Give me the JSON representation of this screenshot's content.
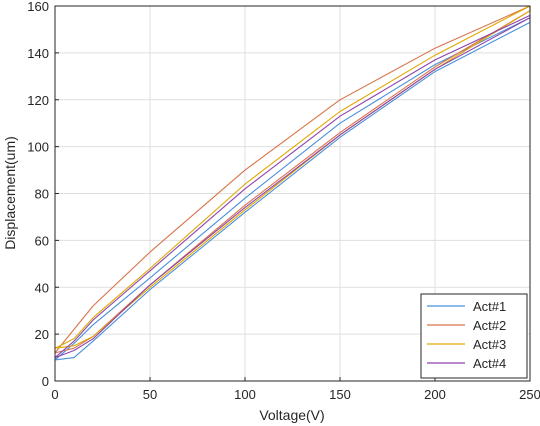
{
  "chart_data": {
    "type": "line",
    "title": "",
    "xlabel": "Voltage(V)",
    "ylabel": "Displacement(um)",
    "xlim": [
      0,
      250
    ],
    "ylim": [
      0,
      160
    ],
    "xticks": [
      0,
      50,
      100,
      150,
      200,
      250
    ],
    "yticks": [
      0,
      20,
      40,
      60,
      80,
      100,
      120,
      140,
      160
    ],
    "grid": true,
    "legend_position": "bottom-right",
    "series": [
      {
        "name": "Act#1",
        "color": "#4a90d9",
        "ascending": {
          "x": [
            0,
            10,
            20,
            50,
            100,
            150,
            200,
            250
          ],
          "y": [
            9,
            10,
            17,
            39,
            72,
            104,
            132,
            153
          ]
        },
        "descending": {
          "x": [
            250,
            200,
            150,
            100,
            50,
            20,
            10,
            0
          ],
          "y": [
            155,
            135,
            110,
            78,
            44,
            24,
            16,
            9
          ]
        }
      },
      {
        "name": "Act#2",
        "color": "#d9744a",
        "ascending": {
          "x": [
            0,
            10,
            20,
            50,
            100,
            150,
            200,
            250
          ],
          "y": [
            12,
            14,
            19,
            41,
            75,
            106,
            134,
            158
          ]
        },
        "descending": {
          "x": [
            250,
            200,
            150,
            100,
            50,
            20,
            10,
            0
          ],
          "y": [
            160,
            142,
            120,
            90,
            55,
            32,
            22,
            12
          ]
        }
      },
      {
        "name": "Act#3",
        "color": "#e0a800",
        "ascending": {
          "x": [
            0,
            10,
            20,
            50,
            100,
            150,
            200,
            250
          ],
          "y": [
            14,
            15,
            19,
            40,
            73,
            105,
            133,
            158
          ]
        },
        "descending": {
          "x": [
            250,
            200,
            150,
            100,
            50,
            20,
            10,
            0
          ],
          "y": [
            160,
            139,
            115,
            84,
            48,
            27,
            18,
            14
          ]
        }
      },
      {
        "name": "Act#4",
        "color": "#8e44ad",
        "ascending": {
          "x": [
            0,
            10,
            20,
            50,
            100,
            150,
            200,
            250
          ],
          "y": [
            10,
            13,
            18,
            41,
            74,
            105,
            133,
            155
          ]
        },
        "descending": {
          "x": [
            250,
            200,
            150,
            100,
            50,
            20,
            10,
            0
          ],
          "y": [
            156,
            137,
            113,
            82,
            47,
            26,
            17,
            10
          ]
        }
      }
    ]
  }
}
